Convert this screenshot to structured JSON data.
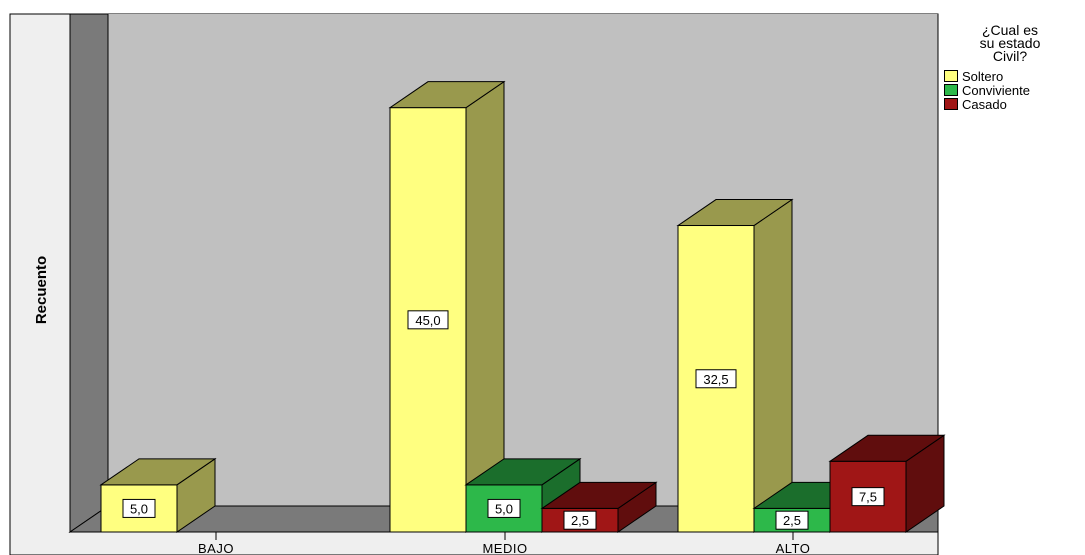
{
  "chart_data": {
    "type": "bar",
    "ylabel": "Recuento",
    "categories": [
      "BAJO",
      "MEDIO",
      "ALTO"
    ],
    "legend_title": [
      "¿Cual es",
      "su estado",
      "Civil?"
    ],
    "legend_position": "top-right",
    "series": [
      {
        "name": "Soltero",
        "color": "#ffff80",
        "values": [
          5.0,
          45.0,
          32.5
        ],
        "labels": [
          "5,0",
          "45,0",
          "32,5"
        ]
      },
      {
        "name": "Conviviente",
        "color": "#2db84a",
        "values": [
          null,
          5.0,
          2.5
        ],
        "labels": [
          null,
          "5,0",
          "2,5"
        ]
      },
      {
        "name": "Casado",
        "color": "#a01616",
        "values": [
          null,
          2.5,
          7.5
        ],
        "labels": [
          null,
          "2,5",
          "7,5"
        ]
      }
    ],
    "grid": false
  }
}
